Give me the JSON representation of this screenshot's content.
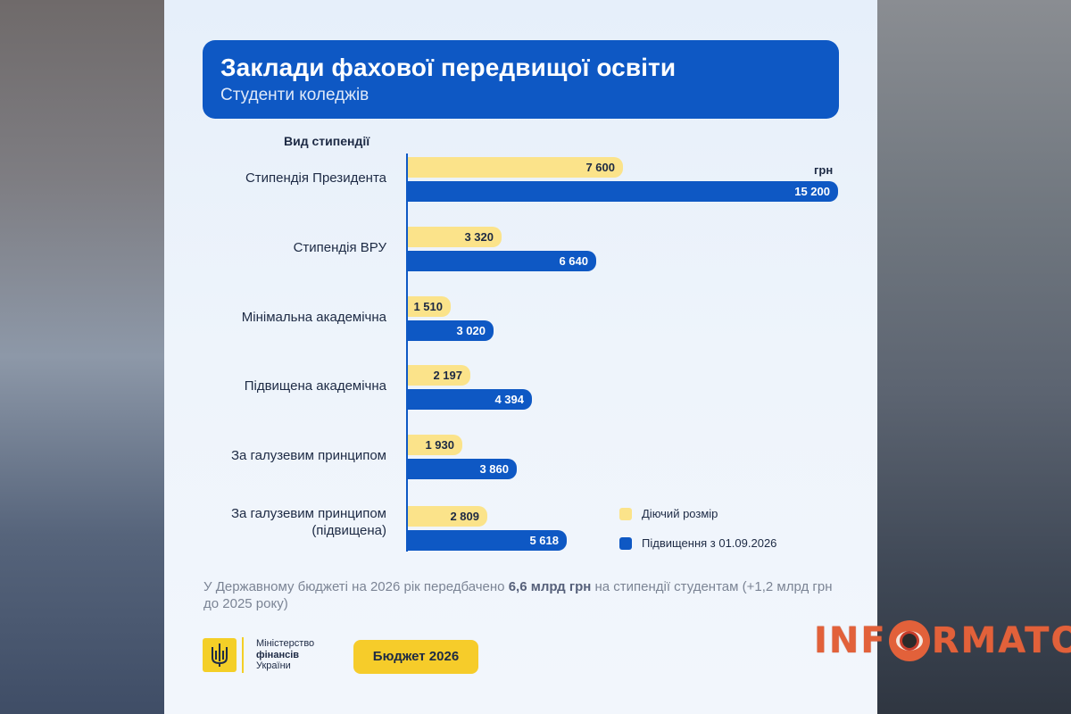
{
  "header": {
    "title": "Заклади фахової передвищої освіти",
    "subtitle": "Студенти коледжів"
  },
  "chart_data": {
    "type": "bar",
    "orientation": "horizontal",
    "category_axis_title": "Вид стипендії",
    "unit_label": "грн",
    "categories": [
      "Стипендія Президента",
      "Стипендія ВРУ",
      "Мінімальна академічна",
      "Підвищена академічна",
      "За галузевим принципом",
      "За галузевим принципом\n(підвищена)"
    ],
    "series": [
      {
        "name": "Діючий розмір",
        "color": "#fbe38a",
        "values": [
          7600,
          3320,
          1510,
          2197,
          1930,
          2809
        ],
        "labels": [
          "7 600",
          "3 320",
          "1 510",
          "2 197",
          "1 930",
          "2 809"
        ]
      },
      {
        "name": "Підвищення з 01.09.2026",
        "color": "#0e58c4",
        "values": [
          15200,
          6640,
          3020,
          4394,
          3860,
          5618
        ],
        "labels": [
          "15 200",
          "6 640",
          "3 020",
          "4 394",
          "3 860",
          "5 618"
        ]
      }
    ],
    "xlim": [
      0,
      15200
    ],
    "legend_position": "bottom-right",
    "grid": false
  },
  "note": {
    "text_before": "У Державному бюджеті на 2026 рік передбачено ",
    "text_bold": "6,6 млрд грн",
    "text_after": " на стипендії студентам (+1,2 млрд грн до 2025 року)"
  },
  "footer": {
    "ministry_line1": "Міністерство",
    "ministry_line2": "фінансів",
    "ministry_line3": "України",
    "budget_label": "Бюджет 2026"
  },
  "watermark": {
    "part1": "INF",
    "part2": "RMATOR",
    "icon": "eye-icon"
  }
}
